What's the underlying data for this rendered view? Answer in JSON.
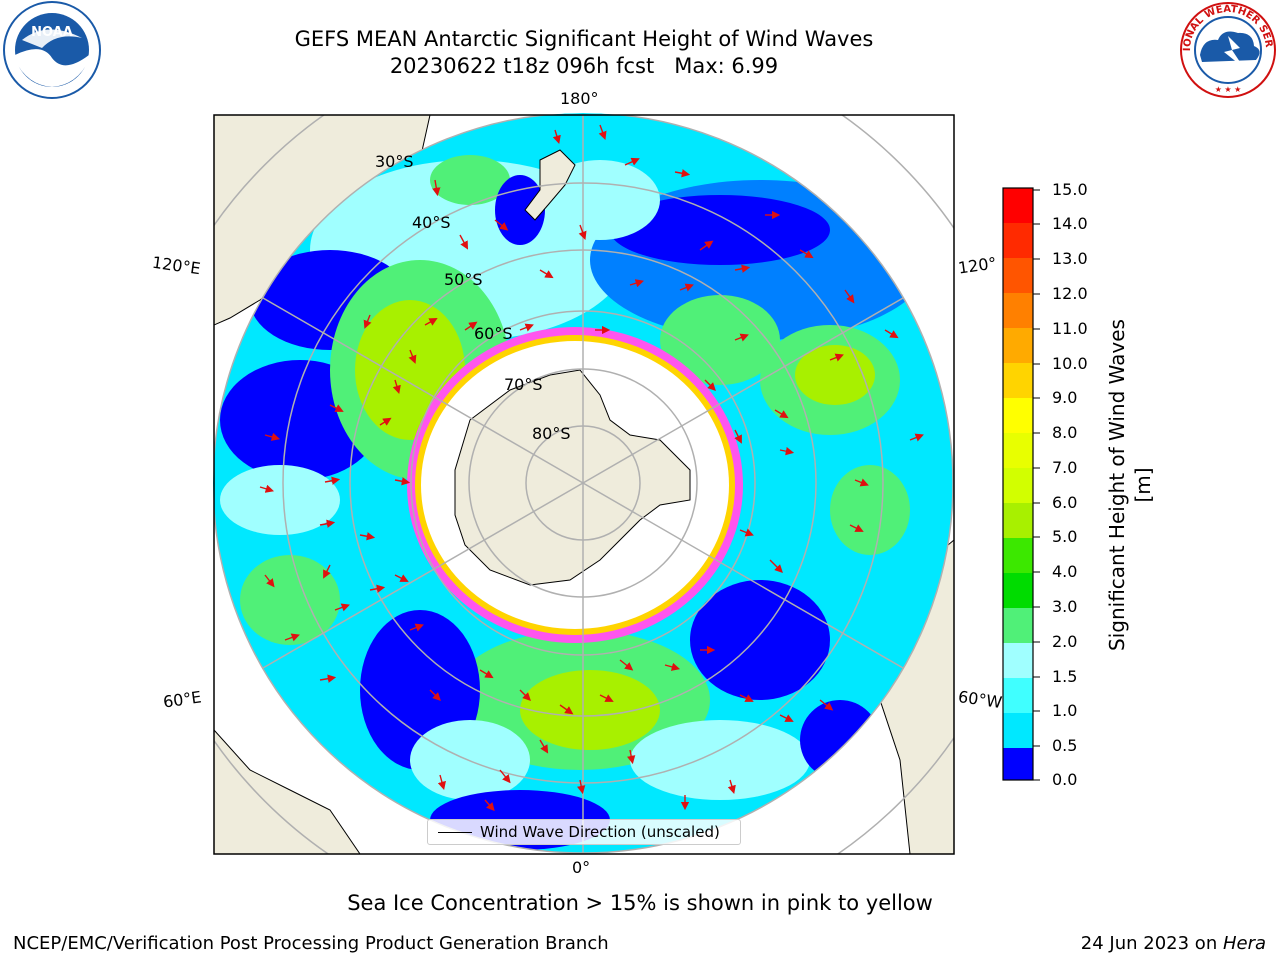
{
  "header": {
    "title_line1": "GEFS MEAN Antarctic Significant Height of Wind Waves",
    "title_line2": "20230622 t18z 096h fcst   Max: 6.99"
  },
  "map": {
    "projection": "south-polar-stereographic",
    "longitude_labels": {
      "top": "180°",
      "bottom": "0°",
      "left_upper": "120°E",
      "left_lower": "60°E",
      "right_upper": "120°",
      "right_lower": "60°W"
    },
    "latitude_labels": [
      "30°S",
      "40°S",
      "50°S",
      "60°S",
      "70°S",
      "80°S"
    ],
    "colors": {
      "land": "#efecdc",
      "ice": "#ffffff",
      "ice_edge": "#ff55ee",
      "arrow": "#e01010",
      "grid": "#b0b0b0"
    }
  },
  "colorbar": {
    "label": "Significant Height of Wind Waves [m]",
    "ticks": [
      "15.0",
      "14.0",
      "13.0",
      "12.0",
      "11.0",
      "10.0",
      "9.0",
      "8.0",
      "7.0",
      "6.0",
      "5.0",
      "4.0",
      "3.0",
      "2.0",
      "1.5",
      "1.0",
      "0.5",
      "0.0"
    ],
    "colors": [
      "#ff0000",
      "#ff2a00",
      "#ff5500",
      "#ff8000",
      "#ffaa00",
      "#ffd400",
      "#ffff00",
      "#e8ff00",
      "#d2ff00",
      "#a8f000",
      "#3ce800",
      "#00dc00",
      "#50f078",
      "#a0ffff",
      "#40ffff",
      "#00e8ff",
      "#0080ff",
      "#0000ff"
    ]
  },
  "legend": {
    "label": "Wind Wave Direction (unscaled)"
  },
  "note": "Sea Ice Concentration > 15% is shown in pink to yellow",
  "footer": {
    "left": "NCEP/EMC/Verification Post Processing Product Generation Branch",
    "right_prefix": "24 Jun 2023 on ",
    "right_machine": "Hera"
  },
  "logos": {
    "noaa": "NOAA",
    "nws": "NATIONAL WEATHER SERVICE"
  }
}
